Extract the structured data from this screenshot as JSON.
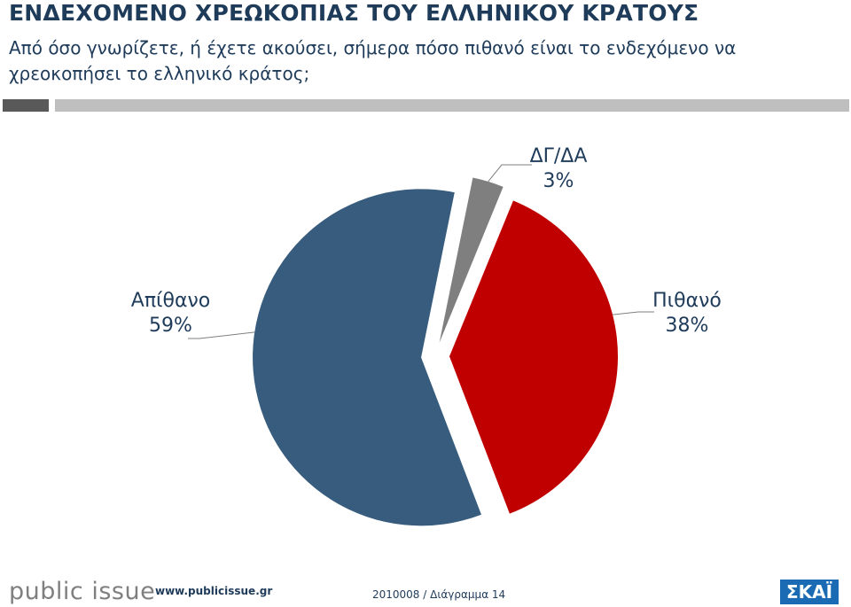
{
  "header": {
    "title": "ΕΝΔΕΧΟΜΕΝΟ ΧΡΕΩΚΟΠΙΑΣ ΤΟΥ ΕΛΛΗΝΙΚΟΥ ΚΡΑΤΟΥΣ",
    "subtitle": "Από όσο γνωρίζετε, ή έχετε ακούσει, σήμερα πόσο πιθανό είναι το ενδεχόμενο να χρεοκοπήσει το ελληνικό κράτος;"
  },
  "chart_data": {
    "type": "pie",
    "slices": [
      {
        "label": "ΔΓ/ΔΑ",
        "value": 3,
        "display": "3%",
        "color": "#7f7f7f"
      },
      {
        "label": "Πιθανό",
        "value": 38,
        "display": "38%",
        "color": "#c00000"
      },
      {
        "label": "Απίθανο",
        "value": 59,
        "display": "59%",
        "color": "#375c7d"
      }
    ]
  },
  "footer": {
    "logo": "public issue",
    "url": "www.publicissue.gr",
    "code": "2010008 / Διάγραμμα 14",
    "brand": "ΣΚΑΪ"
  },
  "colors": {
    "title": "#1f3b5a",
    "bar_dark": "#595959",
    "bar_light": "#bfbfbf",
    "brand_blue": "#1a6bb3"
  }
}
